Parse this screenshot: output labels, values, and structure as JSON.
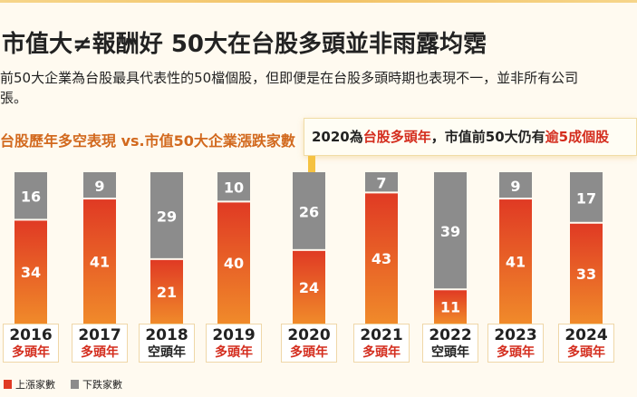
{
  "title": "市值大≠報酬好 50大在台股多頭並非雨露均霑",
  "subtitle_line1": "前50大企業為台股最具代表性的50檔個股，但即便是在台股多頭時期也表現不一，並非所有公司",
  "subtitle_line2": "張。",
  "callout": {
    "p1": "2020為",
    "p2": "台股多頭年",
    "p3": "，市值前50大仍有",
    "p4": "逾5成個股"
  },
  "colors": {
    "up": "#e03a24",
    "up_bottom": "#f08a2a",
    "down": "#8c8c8c",
    "bull": "#d42d1e",
    "bear": "#222222"
  },
  "chart_data": {
    "type": "bar",
    "title": "台股歷年多空表現 vs.市值50大企業漲跌家數",
    "categories": [
      "2016",
      "2017",
      "2018",
      "2019",
      "2020",
      "2021",
      "2022",
      "2023",
      "2024"
    ],
    "market": [
      "多頭年",
      "多頭年",
      "空頭年",
      "多頭年",
      "多頭年",
      "多頭年",
      "空頭年",
      "多頭年",
      "多頭年"
    ],
    "series": [
      {
        "name": "上漲家數",
        "values": [
          34,
          41,
          21,
          40,
          24,
          43,
          11,
          41,
          33
        ]
      },
      {
        "name": "下跌家數",
        "values": [
          16,
          9,
          29,
          10,
          26,
          7,
          39,
          9,
          17
        ]
      }
    ],
    "stacked": true,
    "ylim": [
      0,
      50
    ],
    "legend": "bottom-left"
  }
}
